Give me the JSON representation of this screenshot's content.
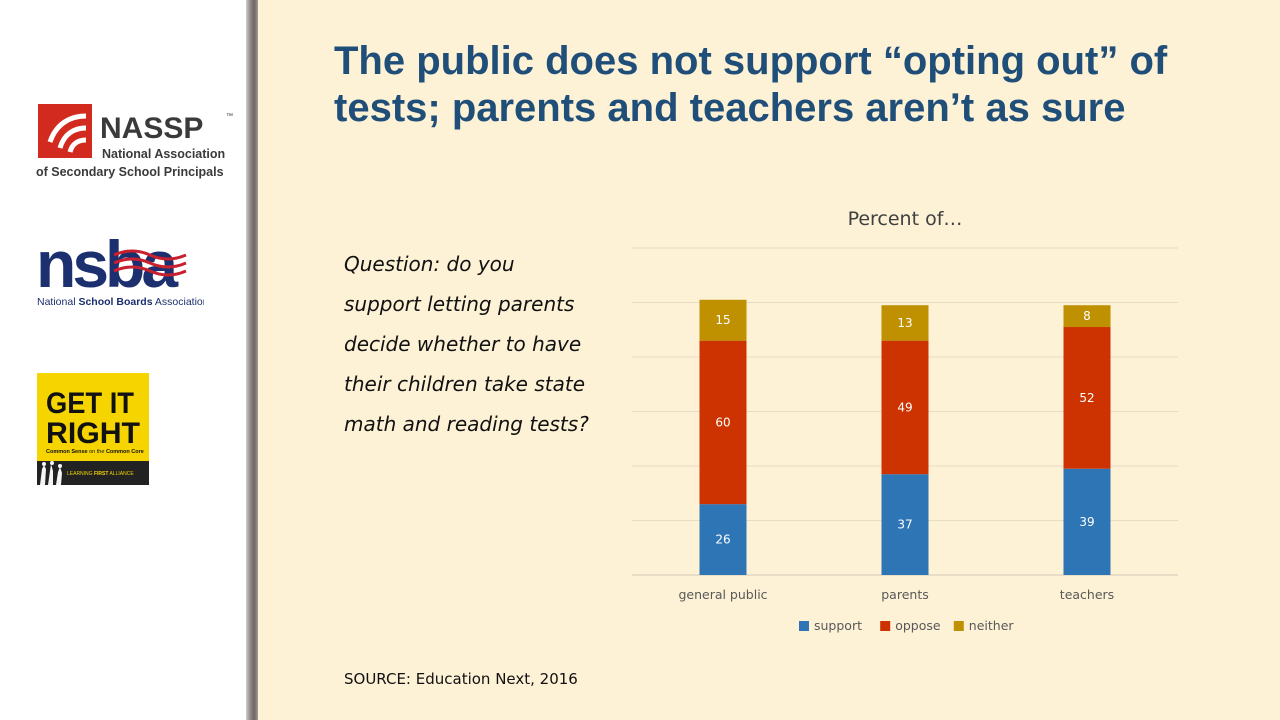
{
  "title": "The public does not support “opting out” of tests; parents and teachers aren’t as sure",
  "question": "Question: do you support letting parents decide whether to have their children take state math and reading tests?",
  "source": "SOURCE: Education Next, 2016",
  "logos": {
    "nassp": {
      "name": "NASSP",
      "trademark": "™",
      "line1": "National Association",
      "line2": "of Secondary School Principals",
      "red": "#d32a1f",
      "text": "#3a3a3a"
    },
    "nsba": {
      "name": "nsba",
      "caption_pre": "National ",
      "caption_bold": "School Boards",
      "caption_post": " Association",
      "navy": "#1c2f6e",
      "red": "#c8202f"
    },
    "getitright": {
      "line1": "GET IT",
      "line2": "RIGHT",
      "tagline_a": "Common Sense",
      "tagline_b": " on the ",
      "tagline_c": "Common Core",
      "footer_a": "LEARNING ",
      "footer_b": "FIRST",
      "footer_c": " ALLIANCE",
      "yellow": "#f5d400"
    }
  },
  "chart_data": {
    "type": "bar",
    "stacked": true,
    "title": "Percent of…",
    "categories": [
      "general public",
      "parents",
      "teachers"
    ],
    "series": [
      {
        "name": "support",
        "values": [
          26,
          37,
          39
        ],
        "color": "#2e75b6"
      },
      {
        "name": "oppose",
        "values": [
          60,
          49,
          52
        ],
        "color": "#cc3300"
      },
      {
        "name": "neither",
        "values": [
          15,
          13,
          8
        ],
        "color": "#bf9000"
      }
    ],
    "ylim": [
      0,
      120
    ],
    "grid": true,
    "legend": "bottom",
    "data_labels": true
  }
}
